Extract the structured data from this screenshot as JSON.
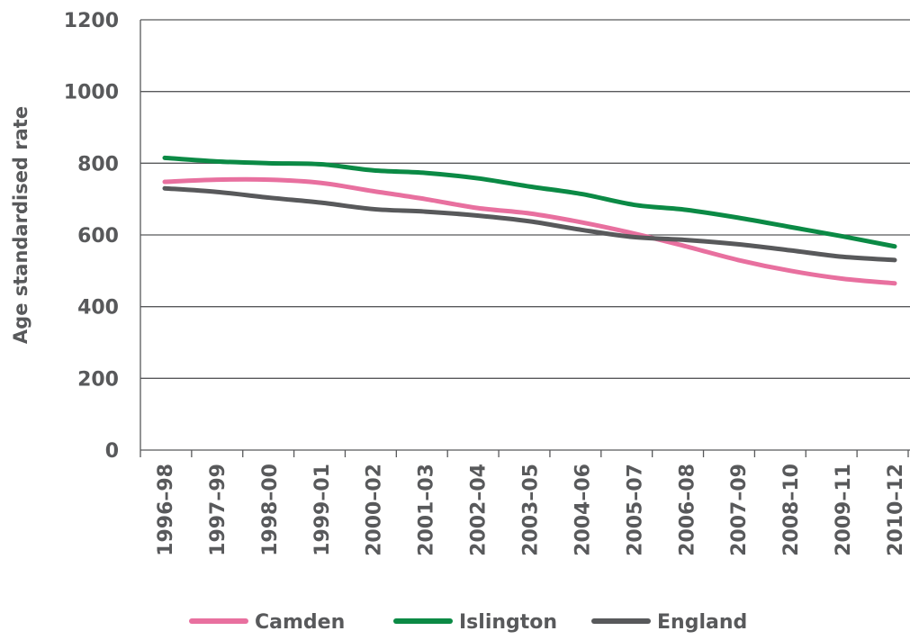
{
  "chart_data": {
    "type": "line",
    "title": "",
    "xlabel": "",
    "ylabel": "Age standardised rate",
    "ylim": [
      0,
      1200
    ],
    "yticks": [
      0,
      200,
      400,
      600,
      800,
      1000,
      1200
    ],
    "grid": true,
    "legend_position": "bottom",
    "categories": [
      "1996–98",
      "1997–99",
      "1998–00",
      "1999–01",
      "2000–02",
      "2001–03",
      "2002–04",
      "2003–05",
      "2004–06",
      "2005–07",
      "2006–08",
      "2007–09",
      "2008–10",
      "2009–11",
      "2010–12"
    ],
    "series": [
      {
        "name": "Camden",
        "color": "#e8709f",
        "values": [
          748,
          754,
          754,
          745,
          722,
          700,
          675,
          660,
          635,
          604,
          568,
          530,
          500,
          478,
          465
        ]
      },
      {
        "name": "Islington",
        "color": "#0b8a45",
        "values": [
          815,
          805,
          800,
          797,
          780,
          773,
          758,
          735,
          714,
          684,
          670,
          648,
          622,
          596,
          568
        ]
      },
      {
        "name": "England",
        "color": "#58595b",
        "values": [
          730,
          720,
          704,
          690,
          672,
          665,
          654,
          638,
          614,
          594,
          586,
          574,
          557,
          539,
          530
        ]
      }
    ]
  }
}
